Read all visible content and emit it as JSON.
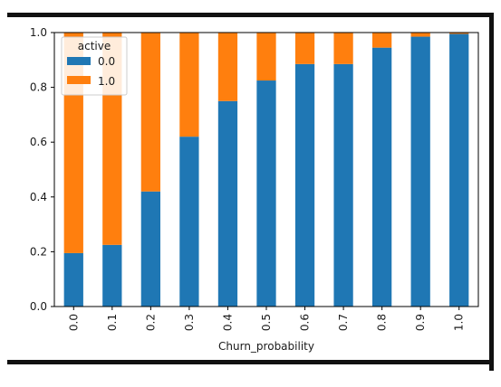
{
  "chart_data": {
    "type": "bar",
    "stacked": true,
    "normalized": true,
    "categories": [
      "0.0",
      "0.1",
      "0.2",
      "0.3",
      "0.4",
      "0.5",
      "0.6",
      "0.7",
      "0.8",
      "0.9",
      "1.0"
    ],
    "series": [
      {
        "name": "0.0",
        "color": "#1f77b4",
        "values": [
          0.195,
          0.225,
          0.42,
          0.62,
          0.75,
          0.825,
          0.885,
          0.885,
          0.945,
          0.985,
          0.995
        ]
      },
      {
        "name": "1.0",
        "color": "#ff7f0e",
        "values": [
          0.805,
          0.775,
          0.58,
          0.38,
          0.25,
          0.175,
          0.115,
          0.115,
          0.055,
          0.015,
          0.005
        ]
      }
    ],
    "xlabel": "Churn_probability",
    "ylabel": "",
    "ylim": [
      0,
      1.0
    ],
    "yticks": [
      "0.0",
      "0.2",
      "0.4",
      "0.6",
      "0.8",
      "1.0"
    ],
    "legend": {
      "title": "active",
      "placement": "top-left"
    },
    "grid": false
  }
}
